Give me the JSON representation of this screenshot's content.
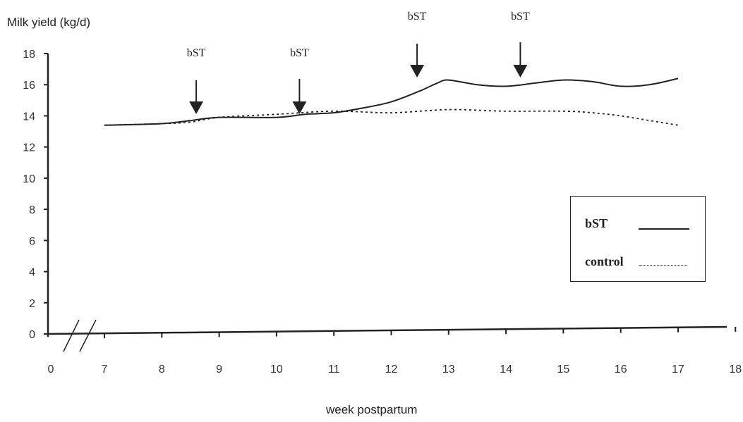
{
  "chart_data": {
    "type": "line",
    "ylabel": "Milk yield (kg/d)",
    "xlabel": "week postpartum",
    "ylim": [
      0,
      18
    ],
    "yticks": [
      0,
      2,
      4,
      6,
      8,
      10,
      12,
      14,
      16,
      18
    ],
    "xticks": [
      0,
      7,
      8,
      9,
      10,
      11,
      12,
      13,
      14,
      15,
      16,
      17,
      18
    ],
    "axis_break": true,
    "grid": false,
    "legend_position": "right",
    "series": [
      {
        "name": "bST",
        "style": "solid",
        "x": [
          7,
          8,
          8.5,
          9,
          10,
          10.5,
          11,
          11.5,
          12,
          12.5,
          12.8,
          13,
          13.5,
          14,
          14.5,
          15,
          15.5,
          16,
          16.5,
          17
        ],
        "y": [
          13.4,
          13.5,
          13.7,
          13.9,
          13.9,
          14.1,
          14.2,
          14.5,
          14.9,
          15.6,
          16.1,
          16.3,
          16.0,
          15.9,
          16.1,
          16.3,
          16.2,
          15.9,
          16.0,
          16.4
        ]
      },
      {
        "name": "control",
        "style": "dotted",
        "x": [
          7,
          8,
          8.5,
          9,
          10,
          11,
          12,
          13,
          14,
          15,
          15.5,
          16,
          16.5,
          17
        ],
        "y": [
          13.4,
          13.5,
          13.6,
          13.9,
          14.1,
          14.3,
          14.2,
          14.4,
          14.3,
          14.3,
          14.2,
          14.0,
          13.7,
          13.4
        ]
      }
    ],
    "annotations": [
      {
        "label": "bST",
        "x": 8.6,
        "type": "arrow"
      },
      {
        "label": "bST",
        "x": 10.4,
        "type": "arrow"
      },
      {
        "label": "bST",
        "x": 12.45,
        "type": "arrow"
      },
      {
        "label": "bST",
        "x": 14.25,
        "type": "arrow"
      }
    ]
  }
}
